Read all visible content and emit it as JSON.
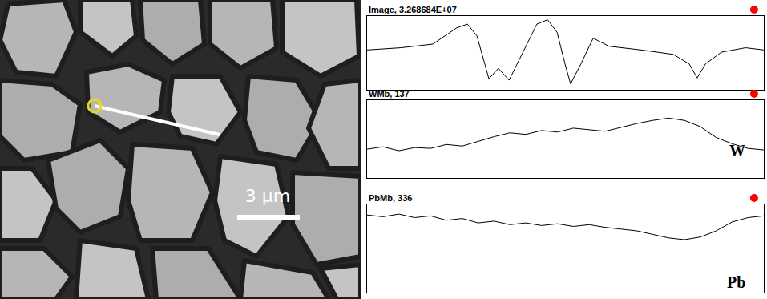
{
  "chart_data": [
    {
      "type": "line",
      "title": "Image, 3.268684E+07",
      "color": "#000000",
      "tick_labels": false,
      "xlim": [
        0,
        100
      ],
      "ylim": [
        0,
        100
      ],
      "x": [
        0,
        8.5,
        16.6,
        22.6,
        25.3,
        27.7,
        30.7,
        33.1,
        35.8,
        39.8,
        42.8,
        45.5,
        47.9,
        49.9,
        51.3,
        53.9,
        57,
        61,
        69.1,
        77.2,
        81.2,
        83.2,
        85.3,
        89.3,
        95.4,
        100
      ],
      "values": [
        54,
        57,
        62,
        84,
        89,
        73,
        15,
        29,
        13,
        57,
        89,
        95,
        78,
        35,
        8,
        35,
        70,
        59,
        54,
        48,
        35,
        16,
        35,
        51,
        57,
        54
      ]
    },
    {
      "type": "line",
      "title": "WMb, 137",
      "label": "W",
      "color": "#000000",
      "tick_labels": false,
      "xlim": [
        0,
        100
      ],
      "ylim": [
        0,
        100
      ],
      "x": [
        0,
        4,
        8,
        12,
        16,
        20,
        24,
        28,
        32,
        36,
        40,
        44,
        48,
        52,
        56,
        60,
        64,
        68,
        72,
        76,
        80,
        84,
        88,
        92,
        96,
        100
      ],
      "values": [
        37,
        40,
        35,
        39,
        38,
        43,
        41,
        47,
        53,
        58,
        56,
        61,
        59,
        64,
        62,
        60,
        65,
        70,
        74,
        77,
        74,
        66,
        52,
        44,
        38,
        36
      ]
    },
    {
      "type": "line",
      "title": "PbMb, 336",
      "label": "Pb",
      "color": "#000000",
      "tick_labels": false,
      "xlim": [
        0,
        100
      ],
      "ylim": [
        0,
        100
      ],
      "x": [
        0,
        4,
        8,
        12,
        16,
        20,
        24,
        28,
        32,
        36,
        40,
        44,
        48,
        52,
        56,
        60,
        64,
        68,
        72,
        76,
        80,
        84,
        88,
        92,
        96,
        100
      ],
      "values": [
        88,
        86,
        89,
        85,
        87,
        82,
        84,
        79,
        81,
        77,
        79,
        76,
        78,
        75,
        77,
        74,
        72,
        70,
        66,
        62,
        60,
        63,
        70,
        80,
        85,
        87
      ]
    }
  ],
  "micrograph": {
    "scale_bar": "3 µm"
  }
}
